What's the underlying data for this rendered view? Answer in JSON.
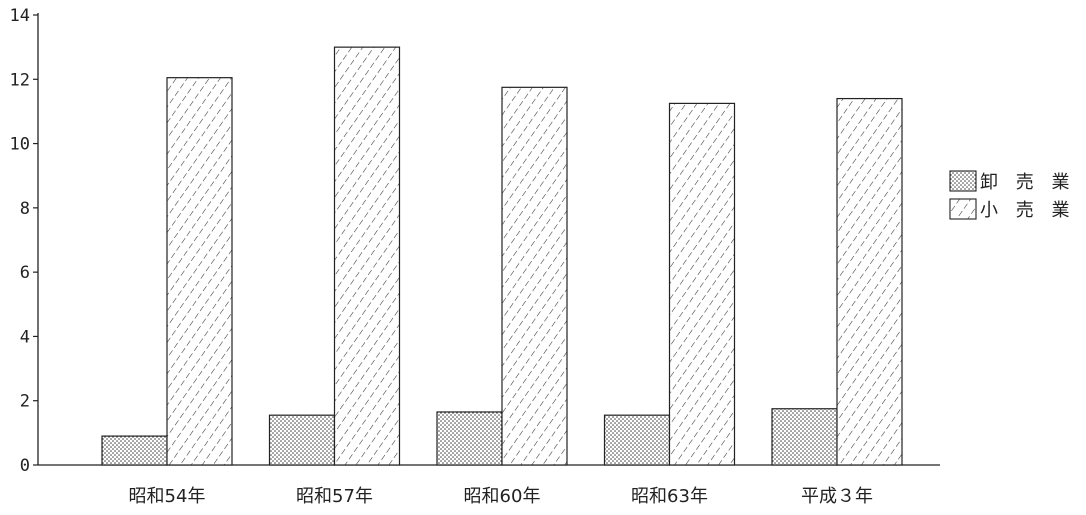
{
  "chart_data": {
    "type": "bar",
    "categories": [
      "昭和54年",
      "昭和57年",
      "昭和60年",
      "昭和63年",
      "平成３年"
    ],
    "series": [
      {
        "name": "卸売業",
        "values": [
          0.9,
          1.55,
          1.65,
          1.55,
          1.75
        ],
        "pattern": "dots"
      },
      {
        "name": "小売業",
        "values": [
          12.05,
          13.0,
          11.75,
          11.25,
          11.4
        ],
        "pattern": "hatch"
      }
    ],
    "legend": {
      "position": "right",
      "labels": [
        "卸 売 業",
        "小 売 業"
      ]
    },
    "ylim": [
      0,
      14
    ],
    "yticks": [
      0,
      2,
      4,
      6,
      8,
      10,
      12,
      14
    ],
    "title": "",
    "xlabel": "",
    "ylabel": "",
    "grid": false
  }
}
